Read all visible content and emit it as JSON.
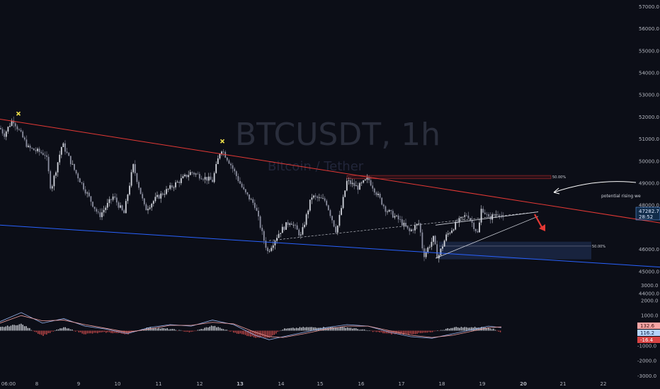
{
  "watermark": {
    "symbol": "BTCUSDT, 1h",
    "description": "Bitcoin / Tether"
  },
  "annotation": {
    "text": "potential rising we"
  },
  "fib_labels": {
    "upper": "50.00%",
    "lower": "50.00%"
  },
  "price_badge": {
    "price": "47282.7",
    "countdown": "28:52"
  },
  "indicator_badges": [
    "132.6",
    "116.2",
    "-16.4"
  ],
  "colors": {
    "background": "#0c0e17",
    "candle": "#d1d4dc",
    "candle_alt": "#8c8fa0",
    "resistance": "#e53935",
    "support": "#2962ff",
    "zone": "#1b2745",
    "arrow": "#e53935",
    "marker": "#f5e34a"
  },
  "chart_data": {
    "type": "candlestick",
    "symbol": "BTCUSDT",
    "timeframe": "1h",
    "x_tick_labels": [
      "06:00",
      "8",
      "9",
      "10",
      "11",
      "12",
      "13",
      "14",
      "15",
      "16",
      "17",
      "18",
      "19",
      "20",
      "21",
      "22"
    ],
    "bold_x_ticks": [
      "13",
      "20"
    ],
    "price_axis_labels": [
      "57000.0",
      "56000.0",
      "55000.0",
      "54000.0",
      "53000.0",
      "52000.0",
      "51000.0",
      "50000.0",
      "49000.0",
      "48000.0",
      "46000.0",
      "45000.0",
      "44000.0"
    ],
    "indicator_axis_labels": [
      "3000.0",
      "2000.0",
      "1000.0",
      "-1000.0",
      "-2000.0",
      "-3000.0"
    ],
    "price_range": [
      43200,
      57300
    ],
    "price_path": [
      [
        0,
        51500
      ],
      [
        6,
        51200
      ],
      [
        18,
        51900
      ],
      [
        40,
        50600
      ],
      [
        65,
        50300
      ],
      [
        72,
        48700
      ],
      [
        88,
        50800
      ],
      [
        105,
        49600
      ],
      [
        120,
        48700
      ],
      [
        140,
        47500
      ],
      [
        160,
        48400
      ],
      [
        175,
        47600
      ],
      [
        188,
        49800
      ],
      [
        205,
        47800
      ],
      [
        220,
        48300
      ],
      [
        245,
        48900
      ],
      [
        270,
        49500
      ],
      [
        300,
        49100
      ],
      [
        312,
        50600
      ],
      [
        325,
        49900
      ],
      [
        345,
        48600
      ],
      [
        360,
        48000
      ],
      [
        372,
        46500
      ],
      [
        378,
        45900
      ],
      [
        395,
        46800
      ],
      [
        410,
        47300
      ],
      [
        425,
        46600
      ],
      [
        440,
        48400
      ],
      [
        460,
        48200
      ],
      [
        475,
        46800
      ],
      [
        490,
        49100
      ],
      [
        505,
        48800
      ],
      [
        520,
        49200
      ],
      [
        545,
        47800
      ],
      [
        565,
        47300
      ],
      [
        578,
        46800
      ],
      [
        592,
        47200
      ],
      [
        598,
        45700
      ],
      [
        612,
        46500
      ],
      [
        618,
        45600
      ],
      [
        630,
        46600
      ],
      [
        645,
        47200
      ],
      [
        660,
        47600
      ],
      [
        675,
        46700
      ],
      [
        680,
        47900
      ],
      [
        690,
        47400
      ],
      [
        705,
        47700
      ],
      [
        712,
        47300
      ]
    ],
    "resistance_line": [
      [
        0,
        51900
      ],
      [
        932,
        47200
      ]
    ],
    "support_line": [
      [
        0,
        47100
      ],
      [
        932,
        45200
      ]
    ],
    "rising_wedge_upper": [
      [
        615,
        47100
      ],
      [
        760,
        47700
      ]
    ],
    "rising_wedge_lower": [
      [
        615,
        45600
      ],
      [
        760,
        47500
      ]
    ],
    "dashed_trendline": [
      [
        380,
        46400
      ],
      [
        760,
        47700
      ]
    ],
    "supply_zone": {
      "x_start": 490,
      "x_end": 778,
      "top": 49350,
      "bottom": 49200
    },
    "demand_zone": {
      "x_start": 620,
      "x_end": 835,
      "top": 46350,
      "bottom": 45550
    },
    "markers": [
      [
        26,
        52150
      ],
      [
        314,
        50900
      ]
    ],
    "current_price": 47282.7,
    "indicator_range": [
      -3400,
      3400
    ],
    "indicator_line_1": [
      [
        0,
        600
      ],
      [
        30,
        1200
      ],
      [
        60,
        500
      ],
      [
        90,
        800
      ],
      [
        120,
        300
      ],
      [
        150,
        100
      ],
      [
        180,
        -200
      ],
      [
        210,
        200
      ],
      [
        240,
        400
      ],
      [
        270,
        300
      ],
      [
        300,
        700
      ],
      [
        330,
        400
      ],
      [
        360,
        -300
      ],
      [
        380,
        -600
      ],
      [
        400,
        -400
      ],
      [
        430,
        -100
      ],
      [
        460,
        200
      ],
      [
        490,
        400
      ],
      [
        520,
        300
      ],
      [
        550,
        -100
      ],
      [
        580,
        -400
      ],
      [
        610,
        -500
      ],
      [
        640,
        -200
      ],
      [
        670,
        100
      ],
      [
        690,
        300
      ],
      [
        708,
        200
      ]
    ],
    "indicator_line_2": [
      [
        0,
        500
      ],
      [
        30,
        1000
      ],
      [
        60,
        650
      ],
      [
        90,
        700
      ],
      [
        120,
        400
      ],
      [
        150,
        150
      ],
      [
        180,
        -100
      ],
      [
        210,
        100
      ],
      [
        240,
        350
      ],
      [
        270,
        350
      ],
      [
        300,
        550
      ],
      [
        330,
        450
      ],
      [
        360,
        -100
      ],
      [
        380,
        -400
      ],
      [
        400,
        -450
      ],
      [
        430,
        -200
      ],
      [
        460,
        100
      ],
      [
        490,
        300
      ],
      [
        520,
        300
      ],
      [
        550,
        0
      ],
      [
        580,
        -300
      ],
      [
        610,
        -450
      ],
      [
        640,
        -300
      ],
      [
        670,
        0
      ],
      [
        690,
        200
      ],
      [
        708,
        250
      ]
    ]
  }
}
